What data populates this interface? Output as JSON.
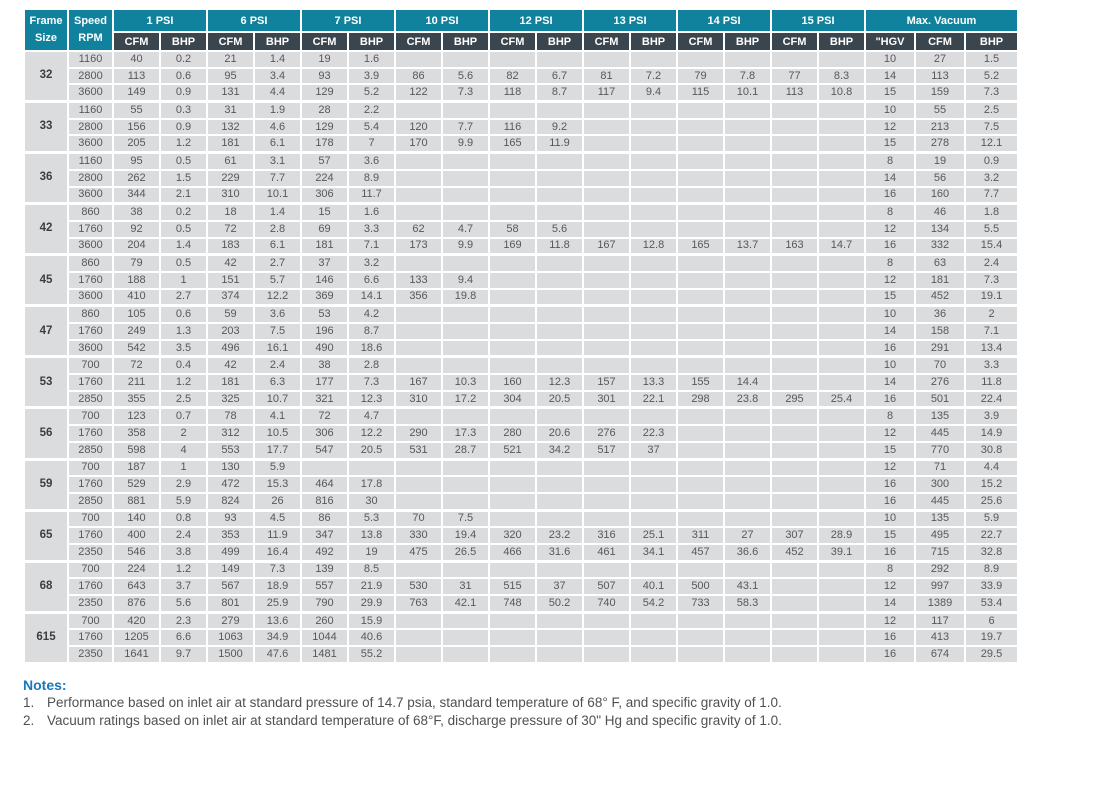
{
  "table": {
    "header": {
      "frame_line1": "Frame",
      "frame_line2": "Size",
      "speed_line1": "Speed",
      "speed_line2": "RPM",
      "psi_groups": [
        "1 PSI",
        "6 PSI",
        "7 PSI",
        "10 PSI",
        "12 PSI",
        "13 PSI",
        "14 PSI",
        "15 PSI"
      ],
      "psi_subcols": [
        "CFM",
        "BHP"
      ],
      "vacuum_group": "Max. Vacuum",
      "vacuum_subcols": [
        "\"HGV",
        "CFM",
        "BHP"
      ]
    },
    "frames": [
      {
        "size": "32",
        "rows": [
          {
            "rpm": "1160",
            "psi": [
              "40",
              "0.2",
              "21",
              "1.4",
              "19",
              "1.6",
              "",
              "",
              "",
              "",
              "",
              "",
              "",
              "",
              "",
              ""
            ],
            "vacuum": [
              "10",
              "27",
              "1.5"
            ]
          },
          {
            "rpm": "2800",
            "psi": [
              "113",
              "0.6",
              "95",
              "3.4",
              "93",
              "3.9",
              "86",
              "5.6",
              "82",
              "6.7",
              "81",
              "7.2",
              "79",
              "7.8",
              "77",
              "8.3"
            ],
            "vacuum": [
              "14",
              "113",
              "5.2"
            ]
          },
          {
            "rpm": "3600",
            "psi": [
              "149",
              "0.9",
              "131",
              "4.4",
              "129",
              "5.2",
              "122",
              "7.3",
              "118",
              "8.7",
              "117",
              "9.4",
              "115",
              "10.1",
              "113",
              "10.8"
            ],
            "vacuum": [
              "15",
              "159",
              "7.3"
            ]
          }
        ]
      },
      {
        "size": "33",
        "rows": [
          {
            "rpm": "1160",
            "psi": [
              "55",
              "0.3",
              "31",
              "1.9",
              "28",
              "2.2",
              "",
              "",
              "",
              "",
              "",
              "",
              "",
              "",
              "",
              ""
            ],
            "vacuum": [
              "10",
              "55",
              "2.5"
            ]
          },
          {
            "rpm": "2800",
            "psi": [
              "156",
              "0.9",
              "132",
              "4.6",
              "129",
              "5.4",
              "120",
              "7.7",
              "116",
              "9.2",
              "",
              "",
              "",
              "",
              "",
              ""
            ],
            "vacuum": [
              "12",
              "213",
              "7.5"
            ]
          },
          {
            "rpm": "3600",
            "psi": [
              "205",
              "1.2",
              "181",
              "6.1",
              "178",
              "7",
              "170",
              "9.9",
              "165",
              "11.9",
              "",
              "",
              "",
              "",
              "",
              ""
            ],
            "vacuum": [
              "15",
              "278",
              "12.1"
            ]
          }
        ]
      },
      {
        "size": "36",
        "rows": [
          {
            "rpm": "1160",
            "psi": [
              "95",
              "0.5",
              "61",
              "3.1",
              "57",
              "3.6",
              "",
              "",
              "",
              "",
              "",
              "",
              "",
              "",
              "",
              ""
            ],
            "vacuum": [
              "8",
              "19",
              "0.9"
            ]
          },
          {
            "rpm": "2800",
            "psi": [
              "262",
              "1.5",
              "229",
              "7.7",
              "224",
              "8.9",
              "",
              "",
              "",
              "",
              "",
              "",
              "",
              "",
              "",
              ""
            ],
            "vacuum": [
              "14",
              "56",
              "3.2"
            ]
          },
          {
            "rpm": "3600",
            "psi": [
              "344",
              "2.1",
              "310",
              "10.1",
              "306",
              "11.7",
              "",
              "",
              "",
              "",
              "",
              "",
              "",
              "",
              "",
              ""
            ],
            "vacuum": [
              "16",
              "160",
              "7.7"
            ]
          }
        ]
      },
      {
        "size": "42",
        "rows": [
          {
            "rpm": "860",
            "psi": [
              "38",
              "0.2",
              "18",
              "1.4",
              "15",
              "1.6",
              "",
              "",
              "",
              "",
              "",
              "",
              "",
              "",
              "",
              ""
            ],
            "vacuum": [
              "8",
              "46",
              "1.8"
            ]
          },
          {
            "rpm": "1760",
            "psi": [
              "92",
              "0.5",
              "72",
              "2.8",
              "69",
              "3.3",
              "62",
              "4.7",
              "58",
              "5.6",
              "",
              "",
              "",
              "",
              "",
              ""
            ],
            "vacuum": [
              "12",
              "134",
              "5.5"
            ]
          },
          {
            "rpm": "3600",
            "psi": [
              "204",
              "1.4",
              "183",
              "6.1",
              "181",
              "7.1",
              "173",
              "9.9",
              "169",
              "11.8",
              "167",
              "12.8",
              "165",
              "13.7",
              "163",
              "14.7"
            ],
            "vacuum": [
              "16",
              "332",
              "15.4"
            ]
          }
        ]
      },
      {
        "size": "45",
        "rows": [
          {
            "rpm": "860",
            "psi": [
              "79",
              "0.5",
              "42",
              "2.7",
              "37",
              "3.2",
              "",
              "",
              "",
              "",
              "",
              "",
              "",
              "",
              "",
              ""
            ],
            "vacuum": [
              "8",
              "63",
              "2.4"
            ]
          },
          {
            "rpm": "1760",
            "psi": [
              "188",
              "1",
              "151",
              "5.7",
              "146",
              "6.6",
              "133",
              "9.4",
              "",
              "",
              "",
              "",
              "",
              "",
              "",
              ""
            ],
            "vacuum": [
              "12",
              "181",
              "7.3"
            ]
          },
          {
            "rpm": "3600",
            "psi": [
              "410",
              "2.7",
              "374",
              "12.2",
              "369",
              "14.1",
              "356",
              "19.8",
              "",
              "",
              "",
              "",
              "",
              "",
              "",
              ""
            ],
            "vacuum": [
              "15",
              "452",
              "19.1"
            ]
          }
        ]
      },
      {
        "size": "47",
        "rows": [
          {
            "rpm": "860",
            "psi": [
              "105",
              "0.6",
              "59",
              "3.6",
              "53",
              "4.2",
              "",
              "",
              "",
              "",
              "",
              "",
              "",
              "",
              "",
              ""
            ],
            "vacuum": [
              "10",
              "36",
              "2"
            ]
          },
          {
            "rpm": "1760",
            "psi": [
              "249",
              "1.3",
              "203",
              "7.5",
              "196",
              "8.7",
              "",
              "",
              "",
              "",
              "",
              "",
              "",
              "",
              "",
              ""
            ],
            "vacuum": [
              "14",
              "158",
              "7.1"
            ]
          },
          {
            "rpm": "3600",
            "psi": [
              "542",
              "3.5",
              "496",
              "16.1",
              "490",
              "18.6",
              "",
              "",
              "",
              "",
              "",
              "",
              "",
              "",
              "",
              ""
            ],
            "vacuum": [
              "16",
              "291",
              "13.4"
            ]
          }
        ]
      },
      {
        "size": "53",
        "rows": [
          {
            "rpm": "700",
            "psi": [
              "72",
              "0.4",
              "42",
              "2.4",
              "38",
              "2.8",
              "",
              "",
              "",
              "",
              "",
              "",
              "",
              "",
              "",
              ""
            ],
            "vacuum": [
              "10",
              "70",
              "3.3"
            ]
          },
          {
            "rpm": "1760",
            "psi": [
              "211",
              "1.2",
              "181",
              "6.3",
              "177",
              "7.3",
              "167",
              "10.3",
              "160",
              "12.3",
              "157",
              "13.3",
              "155",
              "14.4",
              "",
              ""
            ],
            "vacuum": [
              "14",
              "276",
              "11.8"
            ]
          },
          {
            "rpm": "2850",
            "psi": [
              "355",
              "2.5",
              "325",
              "10.7",
              "321",
              "12.3",
              "310",
              "17.2",
              "304",
              "20.5",
              "301",
              "22.1",
              "298",
              "23.8",
              "295",
              "25.4"
            ],
            "vacuum": [
              "16",
              "501",
              "22.4"
            ]
          }
        ]
      },
      {
        "size": "56",
        "rows": [
          {
            "rpm": "700",
            "psi": [
              "123",
              "0.7",
              "78",
              "4.1",
              "72",
              "4.7",
              "",
              "",
              "",
              "",
              "",
              "",
              "",
              "",
              "",
              ""
            ],
            "vacuum": [
              "8",
              "135",
              "3.9"
            ]
          },
          {
            "rpm": "1760",
            "psi": [
              "358",
              "2",
              "312",
              "10.5",
              "306",
              "12.2",
              "290",
              "17.3",
              "280",
              "20.6",
              "276",
              "22.3",
              "",
              "",
              "",
              ""
            ],
            "vacuum": [
              "12",
              "445",
              "14.9"
            ]
          },
          {
            "rpm": "2850",
            "psi": [
              "598",
              "4",
              "553",
              "17.7",
              "547",
              "20.5",
              "531",
              "28.7",
              "521",
              "34.2",
              "517",
              "37",
              "",
              "",
              "",
              ""
            ],
            "vacuum": [
              "15",
              "770",
              "30.8"
            ]
          }
        ]
      },
      {
        "size": "59",
        "rows": [
          {
            "rpm": "700",
            "psi": [
              "187",
              "1",
              "130",
              "5.9",
              "",
              "",
              "",
              "",
              "",
              "",
              "",
              "",
              "",
              "",
              "",
              ""
            ],
            "vacuum": [
              "12",
              "71",
              "4.4"
            ]
          },
          {
            "rpm": "1760",
            "psi": [
              "529",
              "2.9",
              "472",
              "15.3",
              "464",
              "17.8",
              "",
              "",
              "",
              "",
              "",
              "",
              "",
              "",
              "",
              ""
            ],
            "vacuum": [
              "16",
              "300",
              "15.2"
            ]
          },
          {
            "rpm": "2850",
            "psi": [
              "881",
              "5.9",
              "824",
              "26",
              "816",
              "30",
              "",
              "",
              "",
              "",
              "",
              "",
              "",
              "",
              "",
              ""
            ],
            "vacuum": [
              "16",
              "445",
              "25.6"
            ]
          }
        ]
      },
      {
        "size": "65",
        "rows": [
          {
            "rpm": "700",
            "psi": [
              "140",
              "0.8",
              "93",
              "4.5",
              "86",
              "5.3",
              "70",
              "7.5",
              "",
              "",
              "",
              "",
              "",
              "",
              "",
              ""
            ],
            "vacuum": [
              "10",
              "135",
              "5.9"
            ]
          },
          {
            "rpm": "1760",
            "psi": [
              "400",
              "2.4",
              "353",
              "11.9",
              "347",
              "13.8",
              "330",
              "19.4",
              "320",
              "23.2",
              "316",
              "25.1",
              "311",
              "27",
              "307",
              "28.9"
            ],
            "vacuum": [
              "15",
              "495",
              "22.7"
            ]
          },
          {
            "rpm": "2350",
            "psi": [
              "546",
              "3.8",
              "499",
              "16.4",
              "492",
              "19",
              "475",
              "26.5",
              "466",
              "31.6",
              "461",
              "34.1",
              "457",
              "36.6",
              "452",
              "39.1"
            ],
            "vacuum": [
              "16",
              "715",
              "32.8"
            ]
          }
        ]
      },
      {
        "size": "68",
        "rows": [
          {
            "rpm": "700",
            "psi": [
              "224",
              "1.2",
              "149",
              "7.3",
              "139",
              "8.5",
              "",
              "",
              "",
              "",
              "",
              "",
              "",
              "",
              "",
              ""
            ],
            "vacuum": [
              "8",
              "292",
              "8.9"
            ]
          },
          {
            "rpm": "1760",
            "psi": [
              "643",
              "3.7",
              "567",
              "18.9",
              "557",
              "21.9",
              "530",
              "31",
              "515",
              "37",
              "507",
              "40.1",
              "500",
              "43.1",
              "",
              ""
            ],
            "vacuum": [
              "12",
              "997",
              "33.9"
            ]
          },
          {
            "rpm": "2350",
            "psi": [
              "876",
              "5.6",
              "801",
              "25.9",
              "790",
              "29.9",
              "763",
              "42.1",
              "748",
              "50.2",
              "740",
              "54.2",
              "733",
              "58.3",
              "",
              ""
            ],
            "vacuum": [
              "14",
              "1389",
              "53.4"
            ]
          }
        ]
      },
      {
        "size": "615",
        "rows": [
          {
            "rpm": "700",
            "psi": [
              "420",
              "2.3",
              "279",
              "13.6",
              "260",
              "15.9",
              "",
              "",
              "",
              "",
              "",
              "",
              "",
              "",
              "",
              ""
            ],
            "vacuum": [
              "12",
              "117",
              "6"
            ]
          },
          {
            "rpm": "1760",
            "psi": [
              "1205",
              "6.6",
              "1063",
              "34.9",
              "1044",
              "40.6",
              "",
              "",
              "",
              "",
              "",
              "",
              "",
              "",
              "",
              ""
            ],
            "vacuum": [
              "16",
              "413",
              "19.7"
            ]
          },
          {
            "rpm": "2350",
            "psi": [
              "1641",
              "9.7",
              "1500",
              "47.6",
              "1481",
              "55.2",
              "",
              "",
              "",
              "",
              "",
              "",
              "",
              "",
              "",
              ""
            ],
            "vacuum": [
              "16",
              "674",
              "29.5"
            ]
          }
        ]
      }
    ]
  },
  "notes": {
    "heading": "Notes:",
    "items": [
      {
        "num": "1.",
        "text": "Performance based on inlet air at standard pressure of 14.7 psia, standard temperature of 68° F, and specific gravity of 1.0."
      },
      {
        "num": "2.",
        "text": "Vacuum ratings based on inlet air at standard temperature of 68°F, discharge pressure of 30\" Hg and specific gravity of 1.0."
      }
    ]
  },
  "colors": {
    "header_teal": "#10829d",
    "subheader_slate": "#3b454e",
    "cell_gray": "#dbdcde",
    "body_text": "#57585b",
    "notes_blue": "#1878b9"
  }
}
